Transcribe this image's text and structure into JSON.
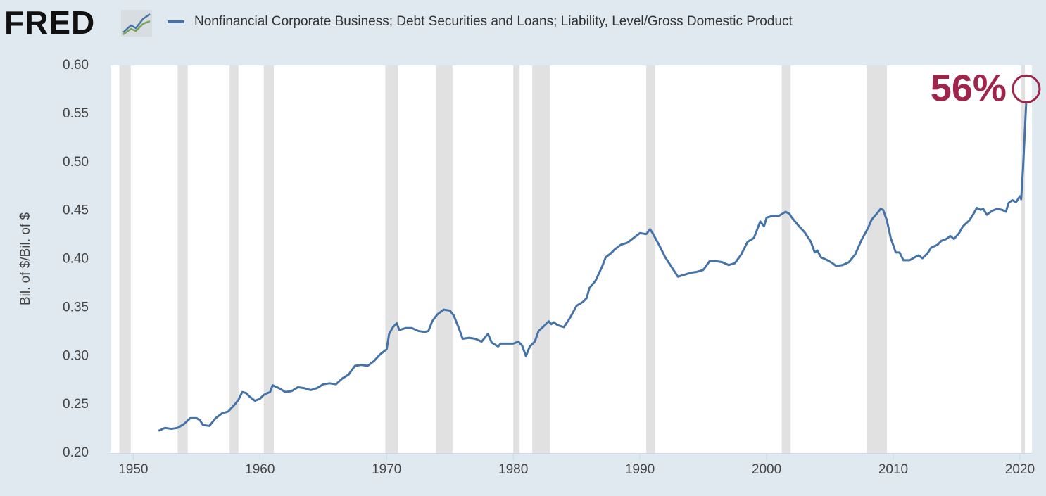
{
  "chart_data": {
    "type": "line",
    "logo": "FRED",
    "ylabel": "Bil. of $/Bil. of $",
    "annotation": "56%",
    "annotation_color": "#a0254a",
    "xlim": [
      1948.2,
      2020.95
    ],
    "xticks": [
      1950,
      1960,
      1970,
      1980,
      1990,
      2000,
      2010,
      2020
    ],
    "ylim": [
      0.2,
      0.6
    ],
    "yticks": [
      {
        "value": 0.2,
        "label": "0.20"
      },
      0.25,
      {
        "value": 0.3,
        "label": "0.30"
      },
      0.35,
      {
        "value": 0.4,
        "label": "0.40"
      },
      0.45,
      {
        "value": 0.5,
        "label": "0.50"
      },
      0.55,
      {
        "value": 0.6,
        "label": "0.60"
      }
    ],
    "grid": false,
    "recession_color": "#e1e1e1",
    "recessions": [
      [
        1948.9,
        1949.8
      ],
      [
        1953.5,
        1954.3
      ],
      [
        1957.6,
        1958.3
      ],
      [
        1960.3,
        1961.1
      ],
      [
        1969.9,
        1970.9
      ],
      [
        1973.9,
        1975.2
      ],
      [
        1980.0,
        1980.5
      ],
      [
        1981.5,
        1982.9
      ],
      [
        1990.5,
        1991.2
      ],
      [
        2001.2,
        2001.9
      ],
      [
        2007.9,
        2009.5
      ],
      [
        2020.1,
        2020.4
      ]
    ],
    "x": [
      1952.0,
      1952.5,
      1953.0,
      1953.5,
      1954.0,
      1954.5,
      1955.0,
      1955.25,
      1955.5,
      1956.0,
      1956.5,
      1957.0,
      1957.5,
      1958.0,
      1958.3,
      1958.6,
      1958.9,
      1959.2,
      1959.6,
      1960.0,
      1960.3,
      1960.6,
      1960.8,
      1961.0,
      1961.5,
      1962.0,
      1962.5,
      1963.0,
      1963.5,
      1964.0,
      1964.5,
      1965.0,
      1965.5,
      1966.0,
      1966.5,
      1967.0,
      1967.5,
      1968.0,
      1968.5,
      1969.0,
      1969.5,
      1970.0,
      1970.2,
      1970.5,
      1970.8,
      1971.0,
      1971.5,
      1972.0,
      1972.5,
      1973.0,
      1973.3,
      1973.6,
      1974.0,
      1974.5,
      1975.0,
      1975.3,
      1975.7,
      1976.0,
      1976.5,
      1977.0,
      1977.5,
      1978.0,
      1978.3,
      1978.8,
      1979.0,
      1979.5,
      1980.0,
      1980.4,
      1980.7,
      1981.0,
      1981.3,
      1981.7,
      1982.0,
      1982.5,
      1982.8,
      1983.0,
      1983.2,
      1983.5,
      1984.0,
      1984.5,
      1985.0,
      1985.5,
      1985.8,
      1986.0,
      1986.5,
      1987.0,
      1987.3,
      1987.7,
      1988.0,
      1988.5,
      1989.0,
      1989.5,
      1990.0,
      1990.5,
      1990.8,
      1991.0,
      1991.5,
      1992.0,
      1992.5,
      1993.0,
      1993.5,
      1994.0,
      1994.5,
      1995.0,
      1995.5,
      1996.0,
      1996.5,
      1997.0,
      1997.5,
      1998.0,
      1998.5,
      1999.0,
      1999.5,
      1999.8,
      2000.0,
      2000.5,
      2001.0,
      2001.5,
      2001.8,
      2002.0,
      2002.5,
      2003.0,
      2003.5,
      2003.8,
      2004.0,
      2004.3,
      2004.8,
      2005.2,
      2005.5,
      2006.0,
      2006.5,
      2007.0,
      2007.5,
      2008.0,
      2008.3,
      2008.7,
      2009.0,
      2009.2,
      2009.5,
      2009.8,
      2010.2,
      2010.5,
      2010.8,
      2011.3,
      2011.7,
      2012.0,
      2012.3,
      2012.7,
      2013.0,
      2013.5,
      2013.8,
      2014.2,
      2014.5,
      2014.8,
      2015.2,
      2015.5,
      2016.0,
      2016.3,
      2016.6,
      2016.9,
      2017.1,
      2017.4,
      2017.8,
      2018.2,
      2018.6,
      2018.9,
      2019.1,
      2019.4,
      2019.7,
      2019.9,
      2020.0,
      2020.1,
      2020.25,
      2020.5
    ],
    "series": [
      {
        "name": "Nonfinancial Corporate Business; Debt Securities and Loans; Liability, Level/Gross Domestic Product",
        "color": "#4572a7",
        "values": [
          0.223,
          0.226,
          0.225,
          0.226,
          0.23,
          0.236,
          0.236,
          0.234,
          0.229,
          0.228,
          0.236,
          0.241,
          0.243,
          0.25,
          0.255,
          0.263,
          0.262,
          0.258,
          0.254,
          0.256,
          0.26,
          0.262,
          0.263,
          0.27,
          0.267,
          0.263,
          0.264,
          0.268,
          0.267,
          0.265,
          0.267,
          0.271,
          0.272,
          0.271,
          0.277,
          0.281,
          0.29,
          0.291,
          0.29,
          0.295,
          0.302,
          0.307,
          0.323,
          0.33,
          0.334,
          0.327,
          0.329,
          0.329,
          0.326,
          0.325,
          0.326,
          0.336,
          0.343,
          0.348,
          0.347,
          0.342,
          0.329,
          0.318,
          0.319,
          0.318,
          0.315,
          0.323,
          0.314,
          0.31,
          0.313,
          0.313,
          0.313,
          0.315,
          0.311,
          0.3,
          0.31,
          0.315,
          0.326,
          0.332,
          0.336,
          0.333,
          0.335,
          0.332,
          0.33,
          0.34,
          0.352,
          0.356,
          0.36,
          0.37,
          0.378,
          0.392,
          0.402,
          0.406,
          0.41,
          0.415,
          0.417,
          0.422,
          0.427,
          0.426,
          0.431,
          0.427,
          0.415,
          0.402,
          0.392,
          0.382,
          0.384,
          0.386,
          0.387,
          0.389,
          0.398,
          0.398,
          0.397,
          0.394,
          0.396,
          0.405,
          0.418,
          0.422,
          0.439,
          0.434,
          0.443,
          0.445,
          0.445,
          0.449,
          0.447,
          0.443,
          0.435,
          0.428,
          0.418,
          0.407,
          0.409,
          0.402,
          0.399,
          0.396,
          0.393,
          0.394,
          0.397,
          0.405,
          0.42,
          0.432,
          0.441,
          0.447,
          0.452,
          0.451,
          0.44,
          0.422,
          0.407,
          0.407,
          0.399,
          0.399,
          0.402,
          0.404,
          0.401,
          0.406,
          0.412,
          0.415,
          0.419,
          0.421,
          0.424,
          0.421,
          0.427,
          0.434,
          0.44,
          0.446,
          0.453,
          0.451,
          0.452,
          0.446,
          0.45,
          0.452,
          0.451,
          0.449,
          0.458,
          0.461,
          0.459,
          0.463,
          0.465,
          0.462,
          0.494,
          0.562
        ]
      }
    ]
  }
}
